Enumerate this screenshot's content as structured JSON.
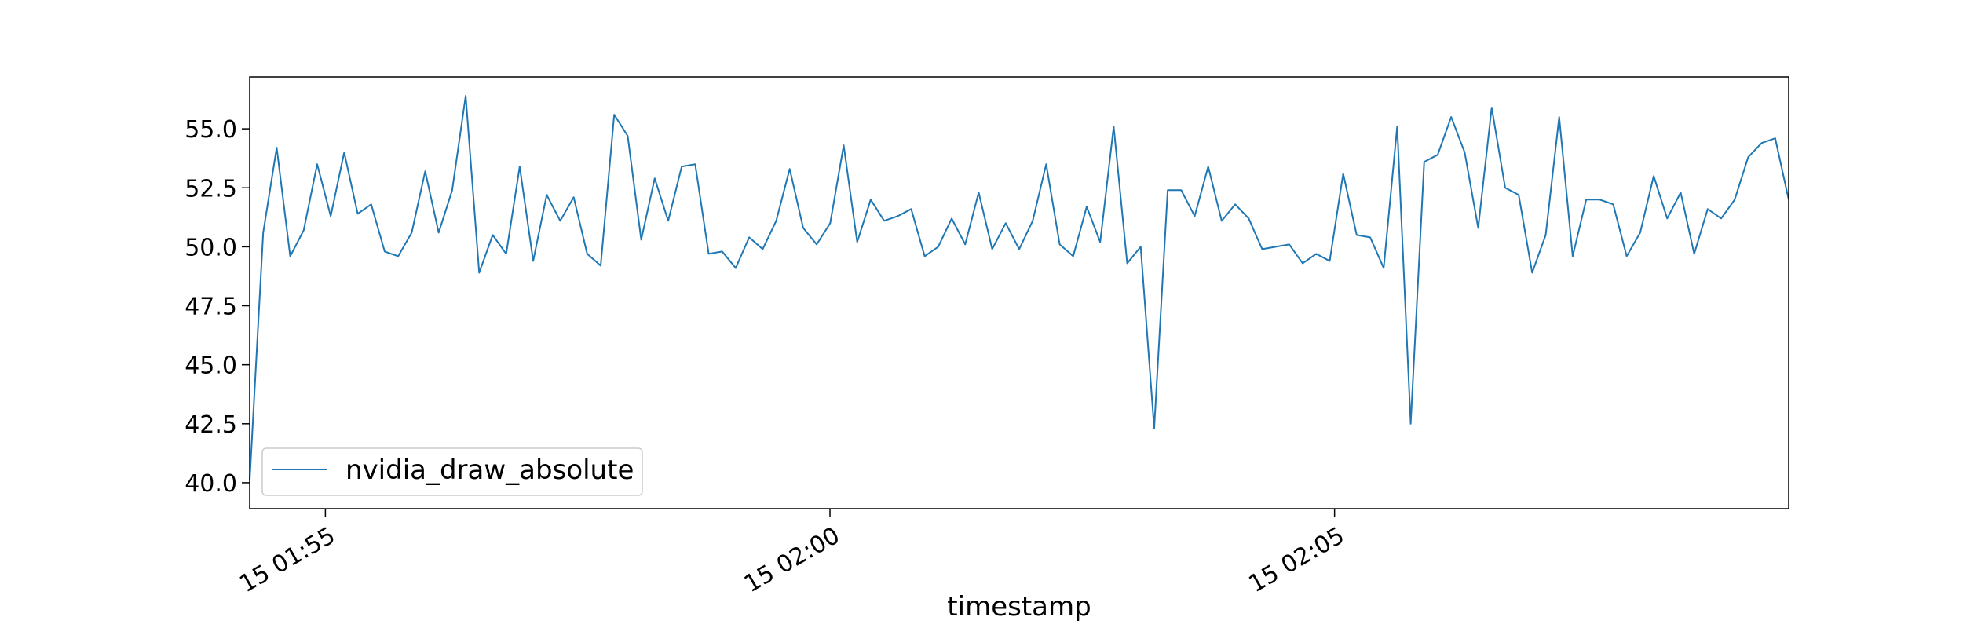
{
  "chart_data": {
    "type": "line",
    "title": "",
    "xlabel": "timestamp",
    "ylabel": "",
    "x_start": "15 01:54:15",
    "x_end": "15 02:09:30",
    "xlim": [
      "15 01:54:15",
      "15 02:09:30"
    ],
    "ylim": [
      38.9,
      57.2
    ],
    "x_ticks": [
      {
        "label": "15 01:55",
        "time": "15 01:55:00"
      },
      {
        "label": "15 02:00",
        "time": "15 02:00:00"
      },
      {
        "label": "15 02:05",
        "time": "15 02:05:00"
      }
    ],
    "y_ticks": [
      "40.0",
      "42.5",
      "45.0",
      "47.5",
      "50.0",
      "52.5",
      "55.0"
    ],
    "grid": false,
    "legend_position": "lower-left",
    "series": [
      {
        "name": "nvidia_draw_absolute",
        "color": "#1f77b4",
        "values": [
          40.1,
          50.6,
          54.2,
          49.6,
          50.7,
          53.5,
          51.3,
          54.0,
          51.4,
          51.8,
          49.8,
          49.6,
          50.6,
          53.2,
          50.6,
          52.4,
          56.4,
          48.9,
          50.5,
          49.7,
          53.4,
          49.4,
          52.2,
          51.1,
          52.1,
          49.7,
          49.2,
          55.6,
          54.7,
          50.3,
          52.9,
          51.1,
          53.4,
          53.5,
          49.7,
          49.8,
          49.1,
          50.4,
          49.9,
          51.1,
          53.3,
          50.8,
          50.1,
          51.0,
          54.3,
          50.2,
          52.0,
          51.1,
          51.3,
          51.6,
          49.6,
          50.0,
          51.2,
          50.1,
          52.3,
          49.9,
          51.0,
          49.9,
          51.1,
          53.5,
          50.1,
          49.6,
          51.7,
          50.2,
          55.1,
          49.3,
          50.0,
          42.3,
          52.4,
          52.4,
          51.3,
          53.4,
          51.1,
          51.8,
          51.2,
          49.9,
          50.0,
          50.1,
          49.3,
          49.7,
          49.4,
          53.1,
          50.5,
          50.4,
          49.1,
          55.1,
          42.5,
          53.6,
          53.9,
          55.5,
          54.0,
          50.8,
          55.9,
          52.5,
          52.2,
          48.9,
          50.5,
          55.5,
          49.6,
          52.0,
          52.0,
          51.8,
          49.6,
          50.6,
          53.0,
          51.2,
          52.3,
          49.7,
          51.6,
          51.2,
          52.0,
          53.8,
          54.4,
          54.6,
          52.0
        ]
      }
    ]
  }
}
